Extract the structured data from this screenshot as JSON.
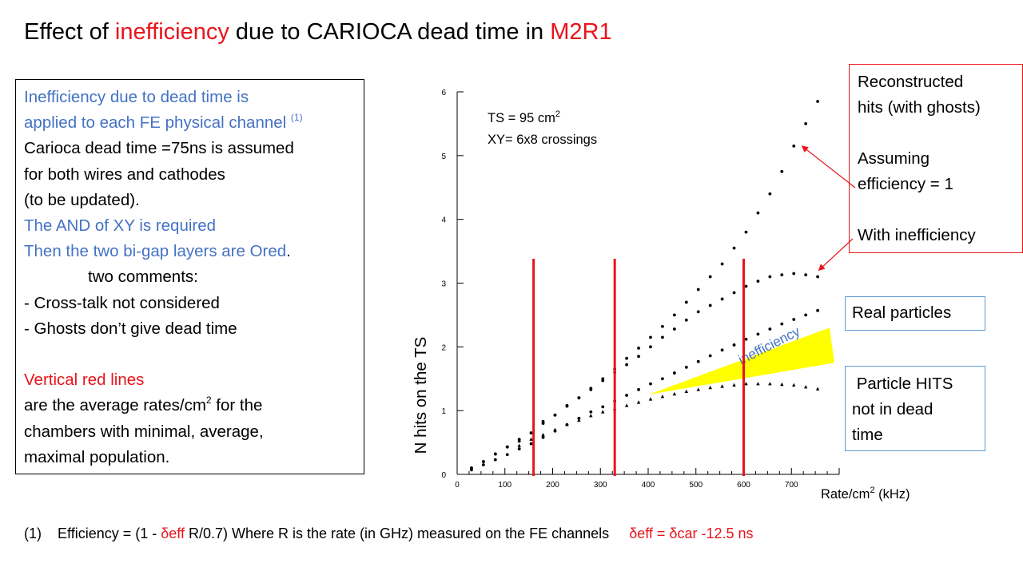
{
  "title": {
    "part1": "Effect of ",
    "part2": "inefficiency",
    "part3": " due to CARIOCA dead time in ",
    "part4": "M2R1"
  },
  "left_box": {
    "line1": "Inefficiency due to dead time is",
    "line2": "applied to each FE physical channel ",
    "line2_sup": "(1)",
    "line3": "Carioca dead time =75ns is assumed",
    "line4": "for both wires and cathodes",
    "line5": "(to be updated).",
    "line6": "The AND of XY is required",
    "line7a": "Then the two bi-gap layers are Ored",
    "line7b": ".",
    "line8": "two comments:",
    "line9": "- Cross-talk not considered",
    "line10": "- Ghosts don’t give dead time",
    "line11": "Vertical red lines",
    "line12a": "are the average rates/cm",
    "line12_sup": "2",
    "line12b": " for the",
    "line13": "chambers with minimal, average,",
    "line14": "maximal population."
  },
  "plot_text": {
    "ts_line1": "TS = 95 cm",
    "ts_sup": "2",
    "ts_line2": "XY= 6x8 crossings",
    "ylabel": "N hits on the TS",
    "xlabel_a": "Rate/cm",
    "xlabel_sup": "2",
    "xlabel_b": "  (kHz)",
    "band_label": "inefficiency"
  },
  "red_box": {
    "line1": "Reconstructed",
    "line2": "hits (with ghosts)",
    "line3": "Assuming",
    "line4": "efficiency = 1",
    "line5": "With inefficiency"
  },
  "real_particles": "Real particles",
  "particle_box": {
    "line1": " Particle HITS",
    "line2": "not in dead",
    "line3": "time"
  },
  "footnote": {
    "num": "(1)",
    "part1": "Efficiency = (1 - ",
    "part2": "δeff",
    "part3": " R/0.7)   Where  R  is the rate (in GHz) measured on the FE channels",
    "part4": "δeff = δcar  -12.5 ns"
  },
  "colors": {
    "accent_red": "#e8141b",
    "accent_blue": "#4472c4",
    "box_blue": "#5b9bd5",
    "band_yellow": "#ffff00"
  },
  "chart_data": {
    "type": "scatter",
    "xlabel": "Rate/cm2 (kHz)",
    "ylabel": "N hits on the TS",
    "xlim": [
      0,
      800
    ],
    "ylim": [
      0,
      6
    ],
    "x_ticks": [
      0,
      100,
      200,
      300,
      400,
      500,
      600,
      700
    ],
    "y_ticks": [
      0,
      1,
      2,
      3,
      4,
      5,
      6
    ],
    "vertical_lines": [
      160,
      330,
      600
    ],
    "inefficiency_band": {
      "start": [
        400,
        1.25
      ],
      "upper_end": [
        780,
        2.3
      ],
      "lower_end": [
        790,
        1.75
      ]
    },
    "series": [
      {
        "marker": "dot",
        "x": [
          30,
          55,
          80,
          105,
          130,
          155,
          180,
          205,
          230,
          255,
          280,
          305,
          330,
          355,
          380,
          405,
          430,
          455,
          480,
          505,
          530,
          555,
          580,
          605,
          630,
          655,
          680,
          705,
          730,
          755
        ],
        "y": [
          0.1,
          0.2,
          0.32,
          0.43,
          0.55,
          0.65,
          0.83,
          0.93,
          1.08,
          1.2,
          1.35,
          1.5,
          1.65,
          1.82,
          1.98,
          2.15,
          2.32,
          2.5,
          2.7,
          2.9,
          3.1,
          3.3,
          3.55,
          3.8,
          4.1,
          4.4,
          4.75,
          5.15,
          5.5,
          5.85
        ]
      },
      {
        "marker": "dot",
        "x": [
          30,
          55,
          80,
          105,
          130,
          155,
          180,
          205,
          230,
          255,
          280,
          305,
          330,
          355,
          380,
          405,
          430,
          455,
          480,
          505,
          530,
          555,
          580,
          605,
          630,
          655,
          680,
          705,
          730,
          755
        ],
        "y": [
          0.1,
          0.2,
          0.32,
          0.43,
          0.52,
          0.65,
          0.8,
          0.93,
          1.07,
          1.2,
          1.33,
          1.47,
          1.6,
          1.72,
          1.85,
          2.0,
          2.15,
          2.28,
          2.42,
          2.55,
          2.65,
          2.75,
          2.85,
          2.95,
          3.03,
          3.1,
          3.13,
          3.15,
          3.13,
          3.1
        ]
      },
      {
        "marker": "dot",
        "x": [
          30,
          55,
          80,
          105,
          130,
          155,
          180,
          205,
          230,
          255,
          280,
          305,
          330,
          355,
          380,
          405,
          430,
          455,
          480,
          505,
          530,
          555,
          580,
          605,
          630,
          655,
          680,
          705,
          730,
          755
        ],
        "y": [
          0.07,
          0.15,
          0.23,
          0.31,
          0.4,
          0.48,
          0.58,
          0.68,
          0.78,
          0.88,
          0.98,
          1.06,
          1.15,
          1.24,
          1.33,
          1.42,
          1.5,
          1.59,
          1.68,
          1.77,
          1.86,
          1.95,
          2.03,
          2.12,
          2.2,
          2.28,
          2.36,
          2.43,
          2.5,
          2.57
        ]
      },
      {
        "marker": "triangle",
        "x": [
          130,
          155,
          180,
          205,
          230,
          255,
          280,
          305,
          330,
          355,
          380,
          405,
          430,
          455,
          480,
          505,
          530,
          555,
          580,
          605,
          630,
          655,
          680,
          705,
          730,
          755
        ],
        "y": [
          0.45,
          0.55,
          0.62,
          0.7,
          0.78,
          0.85,
          0.92,
          0.98,
          1.03,
          1.08,
          1.13,
          1.18,
          1.22,
          1.26,
          1.3,
          1.33,
          1.36,
          1.38,
          1.4,
          1.42,
          1.42,
          1.42,
          1.41,
          1.4,
          1.37,
          1.34
        ]
      }
    ]
  }
}
